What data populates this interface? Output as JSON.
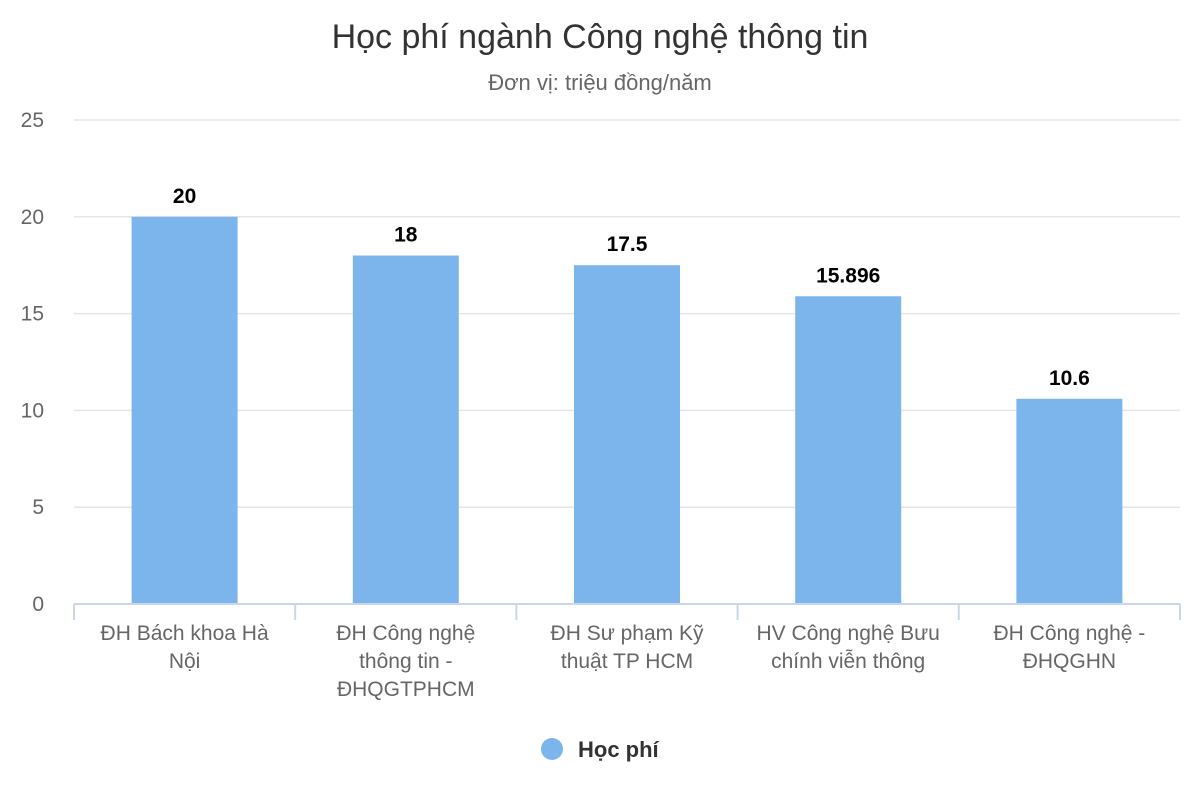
{
  "chart_data": {
    "type": "bar",
    "title": "Học phí ngành Công nghệ thông tin",
    "subtitle": "Đơn vị: triệu đồng/năm",
    "categories": [
      [
        "ĐH Bách khoa Hà",
        "Nội"
      ],
      [
        "ĐH Công nghệ",
        "thông tin -",
        "ĐHQGTPHCM"
      ],
      [
        "ĐH Sư phạm Kỹ",
        "thuật TP HCM"
      ],
      [
        "HV Công nghệ Bưu",
        "chính viễn thông"
      ],
      [
        "ĐH Công nghệ -",
        "ĐHQGHN"
      ]
    ],
    "series": [
      {
        "name": "Học phí",
        "values": [
          20,
          18,
          17.5,
          15.896,
          10.6
        ],
        "data_labels": [
          "20",
          "18",
          "17.5",
          "15.896",
          "10.6"
        ],
        "color": "#7cb5ec"
      }
    ],
    "y_ticks": [
      "0",
      "5",
      "10",
      "15",
      "20",
      "25"
    ],
    "ylim": [
      0,
      25
    ],
    "grid": true,
    "legend_position": "bottom-center"
  }
}
